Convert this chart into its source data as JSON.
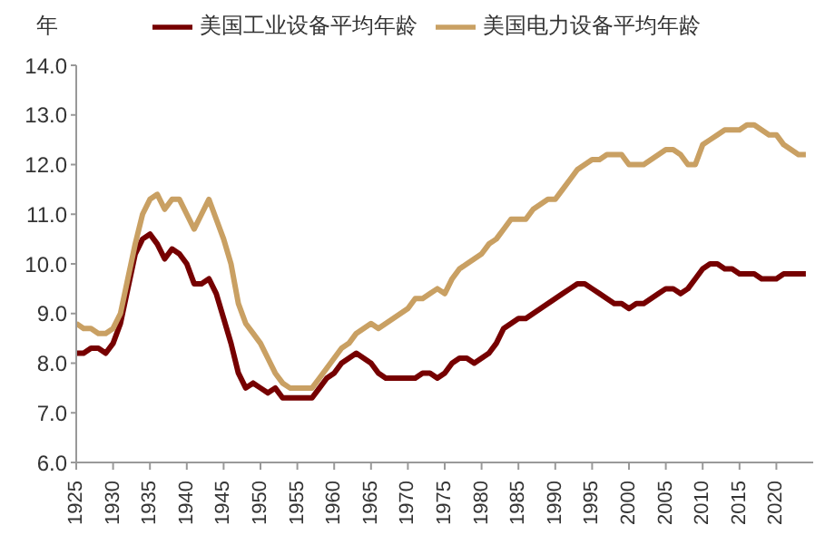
{
  "chart_data": {
    "type": "line",
    "ylabel": "年",
    "legend": "top",
    "grid": false,
    "marker": "none",
    "line_style": "solid",
    "x": [
      1925,
      1926,
      1927,
      1928,
      1929,
      1930,
      1931,
      1932,
      1933,
      1934,
      1935,
      1936,
      1937,
      1938,
      1939,
      1940,
      1941,
      1942,
      1943,
      1944,
      1945,
      1946,
      1947,
      1948,
      1949,
      1950,
      1951,
      1952,
      1953,
      1954,
      1955,
      1956,
      1957,
      1958,
      1959,
      1960,
      1961,
      1962,
      1963,
      1964,
      1965,
      1966,
      1967,
      1968,
      1969,
      1970,
      1971,
      1972,
      1973,
      1974,
      1975,
      1976,
      1977,
      1978,
      1979,
      1980,
      1981,
      1982,
      1983,
      1984,
      1985,
      1986,
      1987,
      1988,
      1989,
      1990,
      1991,
      1992,
      1993,
      1994,
      1995,
      1996,
      1997,
      1998,
      1999,
      2000,
      2001,
      2002,
      2003,
      2004,
      2005,
      2006,
      2007,
      2008,
      2009,
      2010,
      2011,
      2012,
      2013,
      2014,
      2015,
      2016,
      2017,
      2018,
      2019,
      2020,
      2021,
      2022,
      2023,
      2024
    ],
    "series": [
      {
        "name": "美国工业设备平均年龄",
        "color": "#760000",
        "values": [
          8.2,
          8.2,
          8.3,
          8.3,
          8.2,
          8.4,
          8.8,
          9.5,
          10.2,
          10.5,
          10.6,
          10.4,
          10.1,
          10.3,
          10.2,
          10.0,
          9.6,
          9.6,
          9.7,
          9.4,
          8.9,
          8.4,
          7.8,
          7.5,
          7.6,
          7.5,
          7.4,
          7.5,
          7.3,
          7.3,
          7.3,
          7.3,
          7.3,
          7.5,
          7.7,
          7.8,
          8.0,
          8.1,
          8.2,
          8.1,
          8.0,
          7.8,
          7.7,
          7.7,
          7.7,
          7.7,
          7.7,
          7.8,
          7.8,
          7.7,
          7.8,
          8.0,
          8.1,
          8.1,
          8.0,
          8.1,
          8.2,
          8.4,
          8.7,
          8.8,
          8.9,
          8.9,
          9.0,
          9.1,
          9.2,
          9.3,
          9.4,
          9.5,
          9.6,
          9.6,
          9.5,
          9.4,
          9.3,
          9.2,
          9.2,
          9.1,
          9.2,
          9.2,
          9.3,
          9.4,
          9.5,
          9.5,
          9.4,
          9.5,
          9.7,
          9.9,
          10.0,
          10.0,
          9.9,
          9.9,
          9.8,
          9.8,
          9.8,
          9.7,
          9.7,
          9.7,
          9.8,
          9.8,
          9.8,
          9.8
        ]
      },
      {
        "name": "美国电力设备平均年龄",
        "color": "#c9a063",
        "values": [
          8.8,
          8.7,
          8.7,
          8.6,
          8.6,
          8.7,
          9.0,
          9.7,
          10.4,
          11.0,
          11.3,
          11.4,
          11.1,
          11.3,
          11.3,
          11.0,
          10.7,
          11.0,
          11.3,
          10.9,
          10.5,
          10.0,
          9.2,
          8.8,
          8.6,
          8.4,
          8.1,
          7.8,
          7.6,
          7.5,
          7.5,
          7.5,
          7.5,
          7.7,
          7.9,
          8.1,
          8.3,
          8.4,
          8.6,
          8.7,
          8.8,
          8.7,
          8.8,
          8.9,
          9.0,
          9.1,
          9.3,
          9.3,
          9.4,
          9.5,
          9.4,
          9.7,
          9.9,
          10.0,
          10.1,
          10.2,
          10.4,
          10.5,
          10.7,
          10.9,
          10.9,
          10.9,
          11.1,
          11.2,
          11.3,
          11.3,
          11.5,
          11.7,
          11.9,
          12.0,
          12.1,
          12.1,
          12.2,
          12.2,
          12.2,
          12.0,
          12.0,
          12.0,
          12.1,
          12.2,
          12.3,
          12.3,
          12.2,
          12.0,
          12.0,
          12.4,
          12.5,
          12.6,
          12.7,
          12.7,
          12.7,
          12.8,
          12.8,
          12.7,
          12.6,
          12.6,
          12.4,
          12.3,
          12.2,
          12.2
        ]
      }
    ],
    "xlim": [
      1925,
      2025
    ],
    "xticks": [
      1925,
      1930,
      1935,
      1940,
      1945,
      1950,
      1955,
      1960,
      1965,
      1970,
      1975,
      1980,
      1985,
      1990,
      1995,
      2000,
      2005,
      2010,
      2015,
      2020
    ],
    "ylim": [
      6,
      14
    ],
    "yticks": [
      {
        "value": 6,
        "label": "6.0"
      },
      {
        "value": 7,
        "label": "7.0"
      },
      {
        "value": 8,
        "label": "8.0"
      },
      {
        "value": 9,
        "label": "9.0"
      },
      {
        "value": 10,
        "label": "10.0"
      },
      {
        "value": 11,
        "label": "11.0"
      },
      {
        "value": 12,
        "label": "12.0"
      },
      {
        "value": 13,
        "label": "13.0"
      },
      {
        "value": 14,
        "label": "14.0"
      }
    ]
  }
}
